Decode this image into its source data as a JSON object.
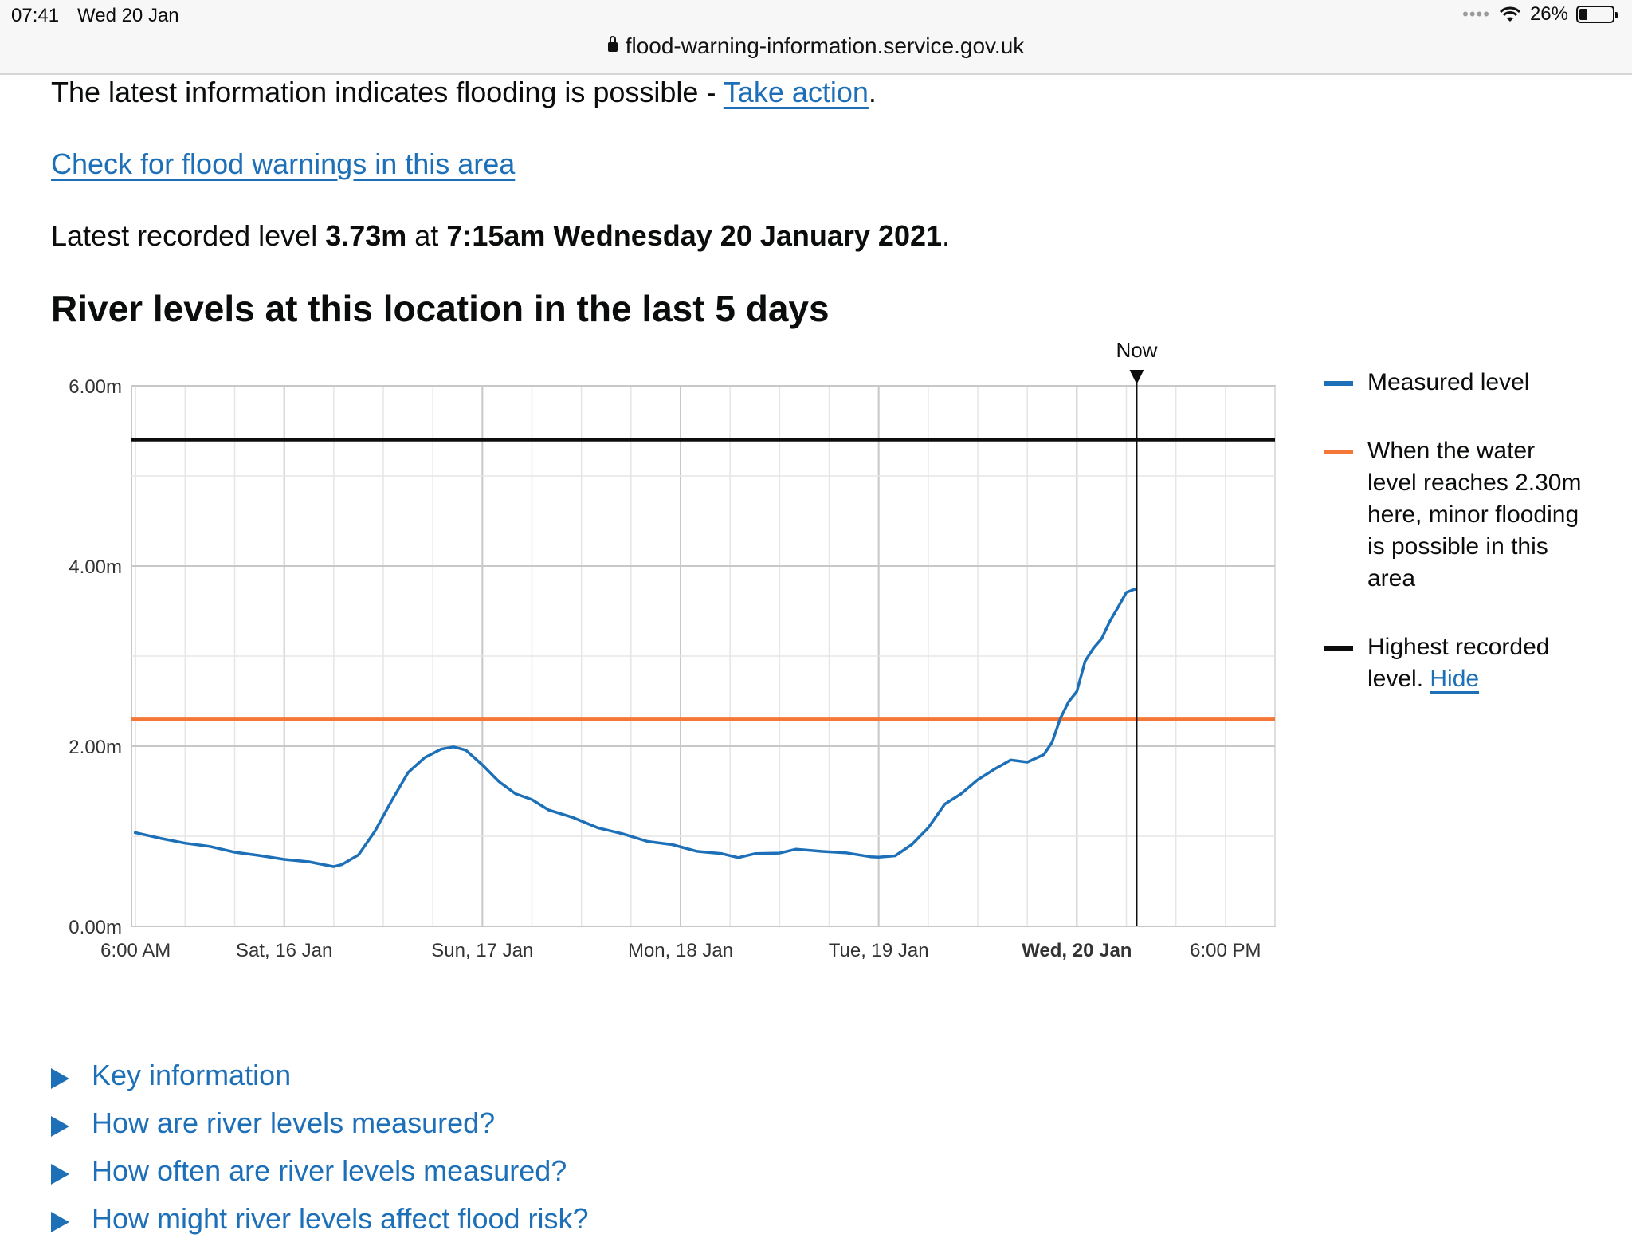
{
  "status_bar": {
    "time": "07:41",
    "date": "Wed 20 Jan",
    "battery": "26%",
    "battery_level": 0.26,
    "url": "flood-warning-information.service.gov.uk"
  },
  "page": {
    "intro_text": "The latest information indicates flooding is possible - ",
    "take_action_link": "Take action",
    "intro_end": ".",
    "check_link": "Check for flood warnings in this area",
    "latest_prefix": "Latest recorded level ",
    "latest_value": "3.73m",
    "latest_at": " at ",
    "latest_time": "7:15am Wednesday 20 January 2021",
    "latest_end": ".",
    "heading": "River levels at this location in the last 5 days"
  },
  "legend": {
    "measured": "Measured level",
    "threshold": "When the water level reaches 2.30m here, minor flooding is possible in this area",
    "highest_prefix": "Highest recorded level. ",
    "hide_link": "Hide"
  },
  "colors": {
    "measured": "#1d70b8",
    "threshold": "#f47738",
    "highest": "#0b0c0c",
    "link": "#1d70b8"
  },
  "chart_data": {
    "type": "line",
    "now_label": "Now",
    "now_hours": 121.25,
    "x_unit": "hours since 6:00 AM Fri 15 Jan",
    "xlim": [
      -0.5,
      138
    ],
    "ylim": [
      0,
      6
    ],
    "yticks": [
      {
        "value": 0,
        "label": "0.00m"
      },
      {
        "value": 2,
        "label": "2.00m"
      },
      {
        "value": 4,
        "label": "4.00m"
      },
      {
        "value": 6,
        "label": "6.00m"
      }
    ],
    "xticks": [
      {
        "value": 0,
        "label": "6:00 AM",
        "bold": false
      },
      {
        "value": 18,
        "label": "Sat, 16 Jan",
        "bold": false
      },
      {
        "value": 42,
        "label": "Sun, 17 Jan",
        "bold": false
      },
      {
        "value": 66,
        "label": "Mon, 18 Jan",
        "bold": false
      },
      {
        "value": 90,
        "label": "Tue, 19 Jan",
        "bold": false
      },
      {
        "value": 114,
        "label": "Wed, 20 Jan",
        "bold": true
      },
      {
        "value": 132,
        "label": "6:00 PM",
        "bold": false
      }
    ],
    "threshold_level": 2.3,
    "highest_level": 5.4,
    "series": [
      {
        "name": "Measured level",
        "points": [
          [
            -0.2,
            1.05
          ],
          [
            3,
            0.97
          ],
          [
            6,
            0.93
          ],
          [
            9,
            0.88
          ],
          [
            12,
            0.83
          ],
          [
            15,
            0.78
          ],
          [
            18,
            0.75
          ],
          [
            21,
            0.71
          ],
          [
            24,
            0.67
          ],
          [
            25,
            0.68
          ],
          [
            27,
            0.8
          ],
          [
            29,
            1.05
          ],
          [
            31,
            1.4
          ],
          [
            33,
            1.7
          ],
          [
            35,
            1.88
          ],
          [
            37,
            1.96
          ],
          [
            38.5,
            2.0
          ],
          [
            40,
            1.95
          ],
          [
            42,
            1.8
          ],
          [
            44,
            1.6
          ],
          [
            46,
            1.48
          ],
          [
            48,
            1.4
          ],
          [
            50,
            1.3
          ],
          [
            53,
            1.2
          ],
          [
            56,
            1.1
          ],
          [
            59,
            1.02
          ],
          [
            62,
            0.95
          ],
          [
            65,
            0.9
          ],
          [
            68,
            0.84
          ],
          [
            71,
            0.8
          ],
          [
            73,
            0.77
          ],
          [
            75,
            0.8
          ],
          [
            78,
            0.82
          ],
          [
            80,
            0.85
          ],
          [
            83,
            0.84
          ],
          [
            86,
            0.81
          ],
          [
            89,
            0.78
          ],
          [
            90,
            0.76
          ],
          [
            92,
            0.79
          ],
          [
            94,
            0.9
          ],
          [
            96,
            1.1
          ],
          [
            98,
            1.35
          ],
          [
            100,
            1.48
          ],
          [
            102,
            1.62
          ],
          [
            104,
            1.75
          ],
          [
            106,
            1.84
          ],
          [
            108,
            1.83
          ],
          [
            110,
            1.9
          ],
          [
            111,
            2.05
          ],
          [
            112,
            2.3
          ],
          [
            113,
            2.5
          ],
          [
            114,
            2.6
          ],
          [
            115,
            2.95
          ],
          [
            116,
            3.08
          ],
          [
            117,
            3.2
          ],
          [
            118,
            3.38
          ],
          [
            119,
            3.55
          ],
          [
            120,
            3.7
          ],
          [
            121,
            3.75
          ],
          [
            121.25,
            3.73
          ]
        ]
      }
    ]
  },
  "details": [
    "Key information",
    "How are river levels measured?",
    "How often are river levels measured?",
    "How might river levels affect flood risk?"
  ]
}
